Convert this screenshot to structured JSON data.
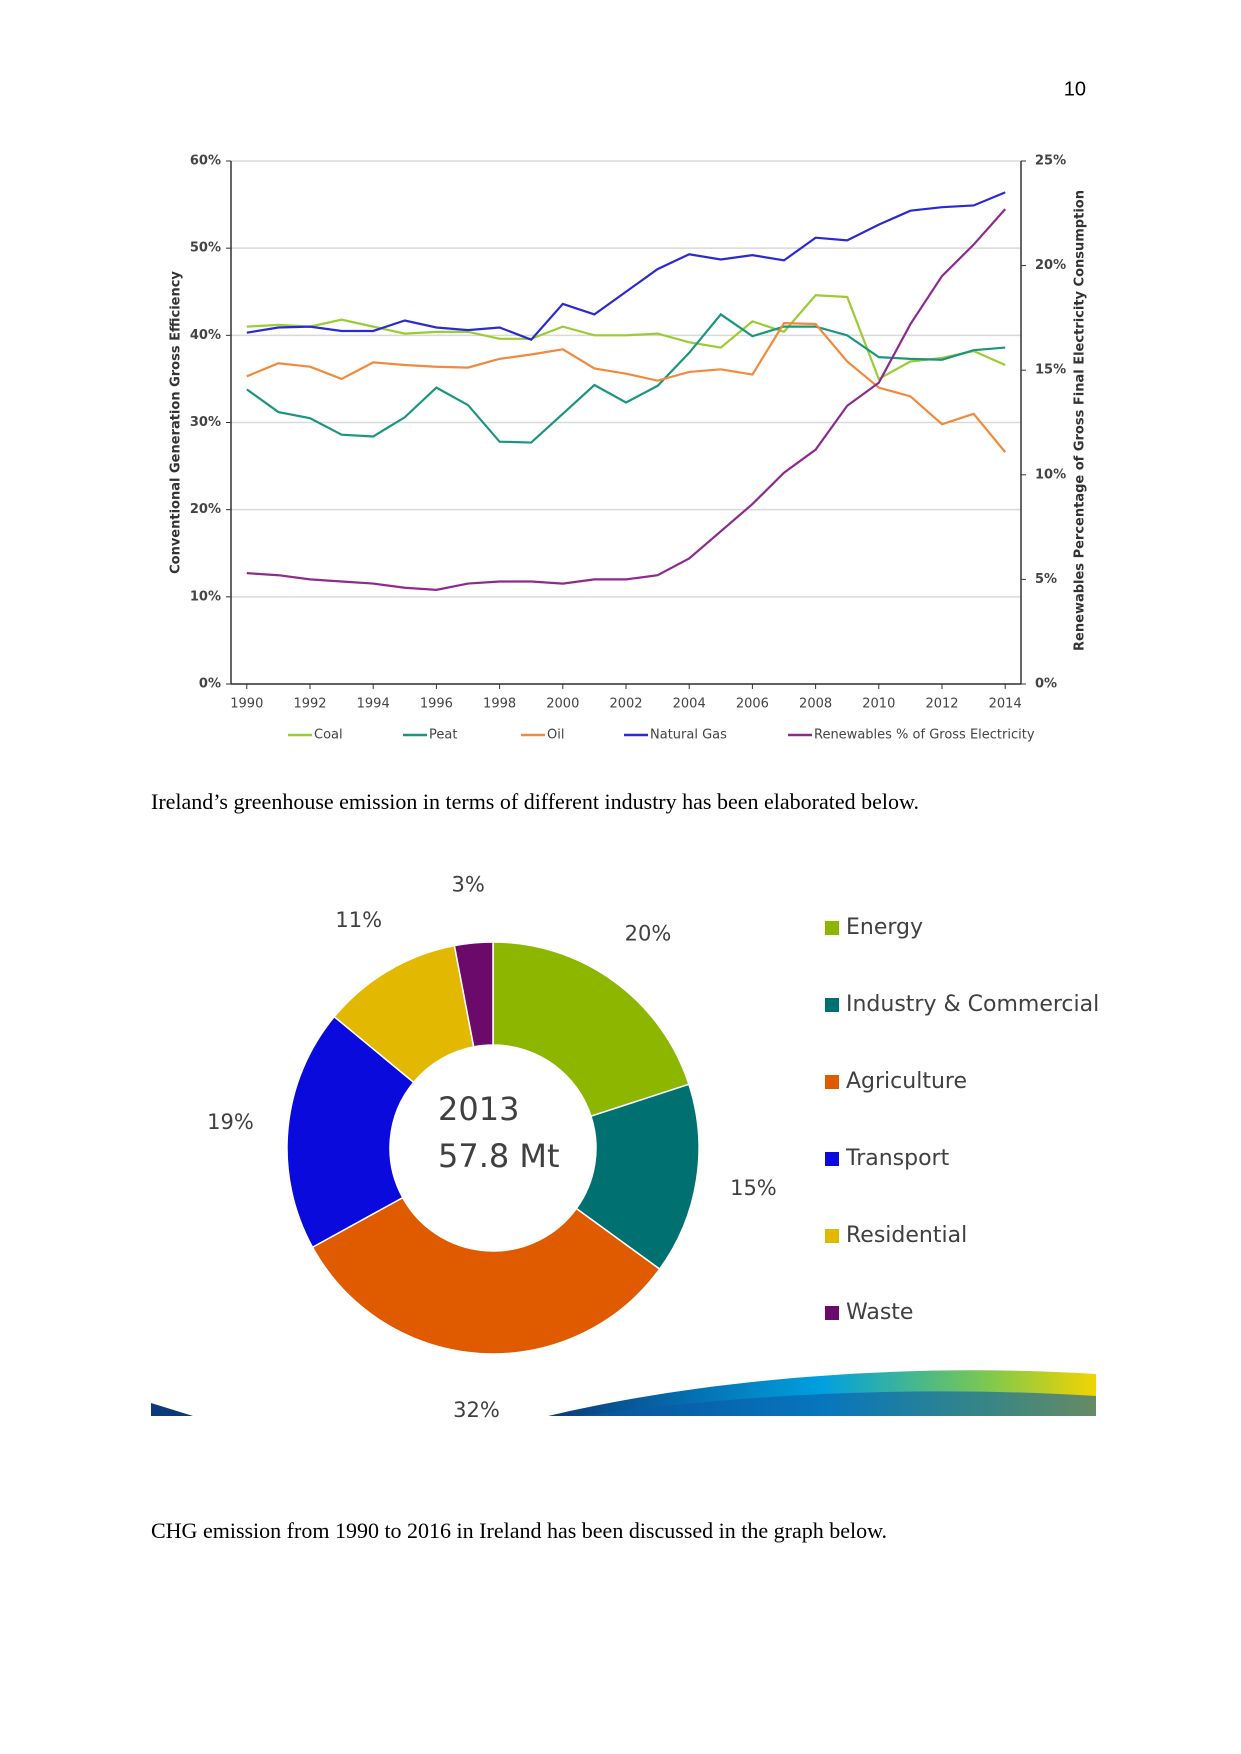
{
  "page_number": "10",
  "chart_data": [
    {
      "type": "line",
      "ylabel": "Conventional Generation Gross Efficiency",
      "y2label": "Renewables Percentage of Gross Final Electricity Consumption",
      "x": [
        1990,
        1991,
        1992,
        1993,
        1994,
        1995,
        1996,
        1997,
        1998,
        1999,
        2000,
        2001,
        2002,
        2003,
        2004,
        2005,
        2006,
        2007,
        2008,
        2009,
        2010,
        2011,
        2012,
        2013,
        2014
      ],
      "xlim": [
        1989.5,
        2014.5
      ],
      "xticks": [
        1990,
        1992,
        1994,
        1996,
        1998,
        2000,
        2002,
        2004,
        2006,
        2008,
        2010,
        2012,
        2014
      ],
      "ylim": [
        0,
        60
      ],
      "yticks": [
        {
          "value": 0,
          "label": "0%"
        },
        {
          "value": 10,
          "label": "10%"
        },
        {
          "value": 20,
          "label": "20%"
        },
        {
          "value": 30,
          "label": "30%"
        },
        {
          "value": 40,
          "label": "40%"
        },
        {
          "value": 50,
          "label": "50%"
        },
        {
          "value": 60,
          "label": "60%"
        }
      ],
      "y2lim": [
        0,
        25
      ],
      "y2ticks": [
        {
          "value": 0,
          "label": "0%"
        },
        {
          "value": 5,
          "label": "5%"
        },
        {
          "value": 10,
          "label": "10%"
        },
        {
          "value": 15,
          "label": "15%"
        },
        {
          "value": 20,
          "label": "20%"
        },
        {
          "value": 25,
          "label": "25%"
        }
      ],
      "grid": true,
      "legend": "bottom",
      "series": [
        {
          "name": "Coal",
          "color": "#9acd32",
          "values": [
            41,
            41.2,
            41,
            41.8,
            41,
            40.2,
            40.4,
            40.4,
            39.6,
            39.6,
            41,
            40,
            40,
            40.2,
            39.2,
            38.6,
            41.6,
            40.4,
            44.6,
            44.4,
            35,
            37,
            37.4,
            38.2,
            36.6
          ]
        },
        {
          "name": "Peat",
          "color": "#1a9680",
          "values": [
            33.8,
            31.2,
            30.5,
            28.6,
            28.4,
            30.6,
            34,
            32,
            27.8,
            27.7,
            31,
            34.3,
            32.3,
            34.2,
            38,
            42.4,
            39.9,
            41,
            41,
            40,
            37.5,
            37.3,
            37.2,
            38.3,
            38.6
          ]
        },
        {
          "name": "Oil",
          "color": "#f08a3c",
          "values": [
            35.3,
            36.8,
            36.4,
            35,
            36.9,
            36.6,
            36.4,
            36.3,
            37.3,
            37.8,
            38.4,
            36.2,
            35.6,
            34.8,
            35.8,
            36.1,
            35.5,
            41.4,
            41.3,
            37,
            34,
            33,
            29.8,
            31,
            26.6
          ]
        },
        {
          "name": "Natural Gas",
          "color": "#2a2ad0",
          "values": [
            40.3,
            40.9,
            41,
            40.5,
            40.5,
            41.7,
            40.9,
            40.6,
            40.9,
            39.5,
            43.6,
            42.4,
            45,
            47.6,
            49.3,
            48.7,
            49.2,
            48.6,
            51.2,
            50.9,
            52.7,
            54.3,
            54.7,
            54.9,
            56.4
          ]
        },
        {
          "name": "Renewables % of Gross Electricity",
          "color": "#8e2a8e",
          "axis": "y2",
          "values": [
            5.3,
            5.2,
            5,
            4.9,
            4.8,
            4.6,
            4.5,
            4.8,
            4.9,
            4.9,
            4.8,
            5,
            5,
            5.2,
            6,
            7.3,
            8.6,
            10.1,
            11.2,
            13.3,
            14.4,
            17.2,
            19.5,
            21,
            22.7
          ]
        }
      ]
    },
    {
      "type": "pie",
      "center_text": [
        "2013",
        "57.8 Mt"
      ],
      "categories": [
        "Energy",
        "Industry & Commercial",
        "Agriculture",
        "Transport",
        "Residential",
        "Waste"
      ],
      "values": [
        20,
        15,
        32,
        19,
        11,
        3
      ],
      "value_labels": [
        "20%",
        "15%",
        "32%",
        "19%",
        "11%",
        "3%"
      ],
      "colors": [
        "#8db600",
        "#007070",
        "#e05a00",
        "#0a0adc",
        "#e3b800",
        "#6b0a6b"
      ],
      "legend": "right"
    }
  ],
  "paragraphs": [
    "Ireland’s greenhouse emission in terms of different industry has been elaborated below.",
    "CHG emission from 1990 to 2016 in Ireland has been discussed in the graph below."
  ]
}
